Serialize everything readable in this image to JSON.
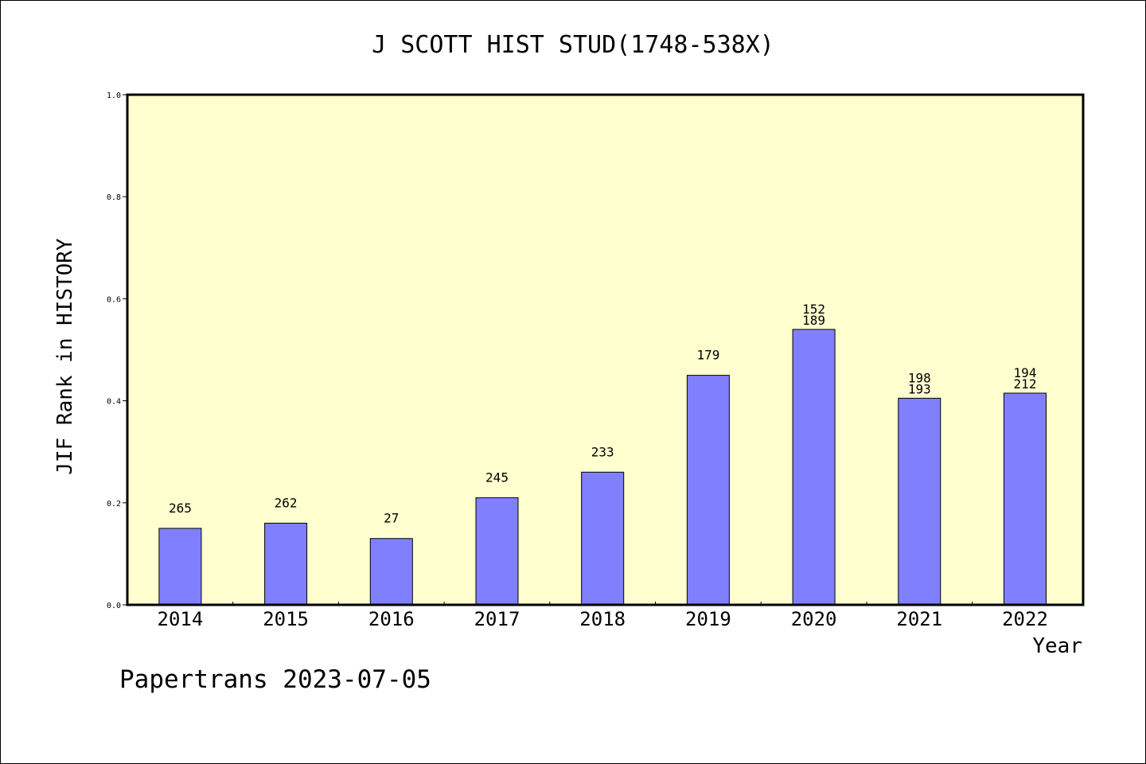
{
  "chart_data": {
    "type": "bar",
    "title": "J SCOTT HIST STUD(1748-538X)",
    "xlabel": "Year",
    "ylabel": "JIF Rank in HISTORY",
    "footer": "Papertrans 2023-07-05",
    "categories": [
      "2014",
      "2015",
      "2016",
      "2017",
      "2018",
      "2019",
      "2020",
      "2021",
      "2022"
    ],
    "values": [
      0.15,
      0.16,
      0.13,
      0.21,
      0.26,
      0.45,
      0.54,
      0.405,
      0.415
    ],
    "bar_labels": [
      [
        "265"
      ],
      [
        "262"
      ],
      [
        "27"
      ],
      [
        "245"
      ],
      [
        "233"
      ],
      [
        "179"
      ],
      [
        "152",
        "189"
      ],
      [
        "198",
        "193"
      ],
      [
        "194",
        "212"
      ]
    ],
    "ylim": [
      0,
      1.0
    ],
    "yticks": [
      "0.0",
      "0.2",
      "0.4",
      "0.6",
      "0.8",
      "1.0"
    ],
    "grid": false,
    "colors": {
      "plot_background": "#ffffd0",
      "bar_fill": "#8080ff",
      "bar_stroke": "#000000"
    }
  }
}
